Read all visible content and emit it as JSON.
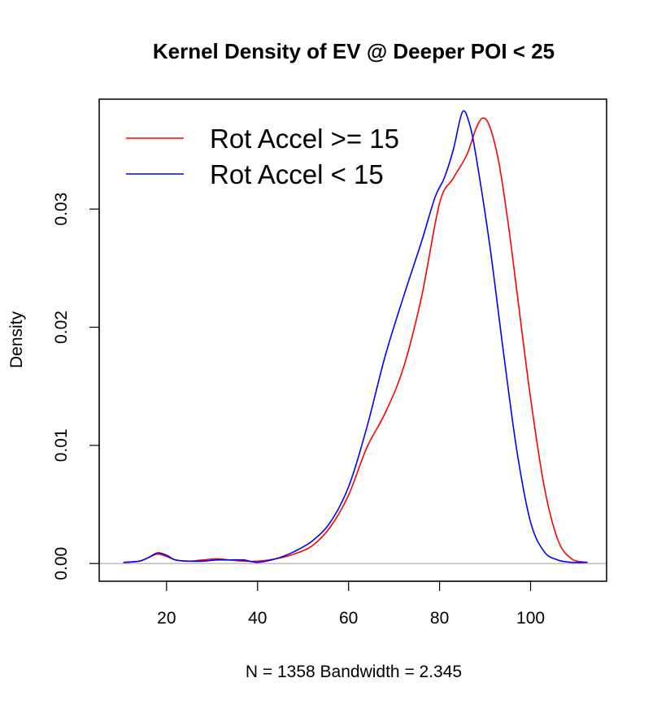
{
  "chart_data": {
    "type": "line",
    "title": "Kernel Density of EV @ Deeper POI < 25",
    "xlabel": "N = 1358   Bandwidth = 2.345",
    "ylabel": "Density",
    "xlim": [
      5.2,
      116.7
    ],
    "ylim": [
      -0.0015,
      0.0393
    ],
    "x_ticks": [
      20,
      40,
      60,
      80,
      100
    ],
    "x_tick_labels": [
      "20",
      "40",
      "60",
      "80",
      "100"
    ],
    "y_ticks": [
      0.0,
      0.01,
      0.02,
      0.03
    ],
    "y_tick_labels": [
      "0.00",
      "0.01",
      "0.02",
      "0.03"
    ],
    "baseline": 0.0,
    "baseline_color": "#bebebe",
    "grid": false,
    "legend_position": "top-left",
    "series": [
      {
        "name": "Rot Accel >= 15",
        "color": "#ff0000",
        "points": [
          [
            10.5,
            0.0001
          ],
          [
            14,
            0.0002
          ],
          [
            16,
            0.0005
          ],
          [
            18,
            0.0008
          ],
          [
            20,
            0.0006
          ],
          [
            22,
            0.0003
          ],
          [
            25,
            0.0002
          ],
          [
            28,
            0.0003
          ],
          [
            31,
            0.0004
          ],
          [
            34,
            0.0003
          ],
          [
            37,
            0.0002
          ],
          [
            40,
            0.0002
          ],
          [
            44,
            0.0004
          ],
          [
            48,
            0.0008
          ],
          [
            52,
            0.0015
          ],
          [
            56,
            0.0031
          ],
          [
            60,
            0.0058
          ],
          [
            64,
            0.0098
          ],
          [
            68,
            0.0127
          ],
          [
            72,
            0.0165
          ],
          [
            76,
            0.0225
          ],
          [
            80,
            0.0305
          ],
          [
            83,
            0.0326
          ],
          [
            86,
            0.0346
          ],
          [
            88,
            0.0368
          ],
          [
            89.5,
            0.0377
          ],
          [
            91,
            0.037
          ],
          [
            93,
            0.034
          ],
          [
            95,
            0.029
          ],
          [
            97,
            0.023
          ],
          [
            100,
            0.014
          ],
          [
            103,
            0.0065
          ],
          [
            106,
            0.002
          ],
          [
            109,
            0.0004
          ],
          [
            112.5,
            0.0001
          ]
        ]
      },
      {
        "name": "Rot Accel < 15",
        "color": "#0000ff",
        "points": [
          [
            10.5,
            0.0001
          ],
          [
            14,
            0.0002
          ],
          [
            16,
            0.0005
          ],
          [
            18,
            0.0009
          ],
          [
            20,
            0.0007
          ],
          [
            22,
            0.0003
          ],
          [
            25,
            0.0002
          ],
          [
            28,
            0.0002
          ],
          [
            31,
            0.0003
          ],
          [
            34,
            0.0003
          ],
          [
            37,
            0.0003
          ],
          [
            40,
            0.0001
          ],
          [
            44,
            0.0004
          ],
          [
            48,
            0.001
          ],
          [
            52,
            0.0019
          ],
          [
            56,
            0.0035
          ],
          [
            60,
            0.0065
          ],
          [
            64,
            0.0115
          ],
          [
            68,
            0.0175
          ],
          [
            72,
            0.0225
          ],
          [
            76,
            0.0272
          ],
          [
            79,
            0.031
          ],
          [
            81,
            0.0326
          ],
          [
            83,
            0.035
          ],
          [
            85,
            0.0382
          ],
          [
            86.5,
            0.0373
          ],
          [
            88,
            0.0345
          ],
          [
            91,
            0.027
          ],
          [
            94,
            0.018
          ],
          [
            97,
            0.0095
          ],
          [
            100,
            0.0035
          ],
          [
            103,
            0.001
          ],
          [
            106,
            0.0003
          ],
          [
            109,
            0.0001
          ],
          [
            112.5,
            0.0001
          ]
        ]
      }
    ]
  }
}
